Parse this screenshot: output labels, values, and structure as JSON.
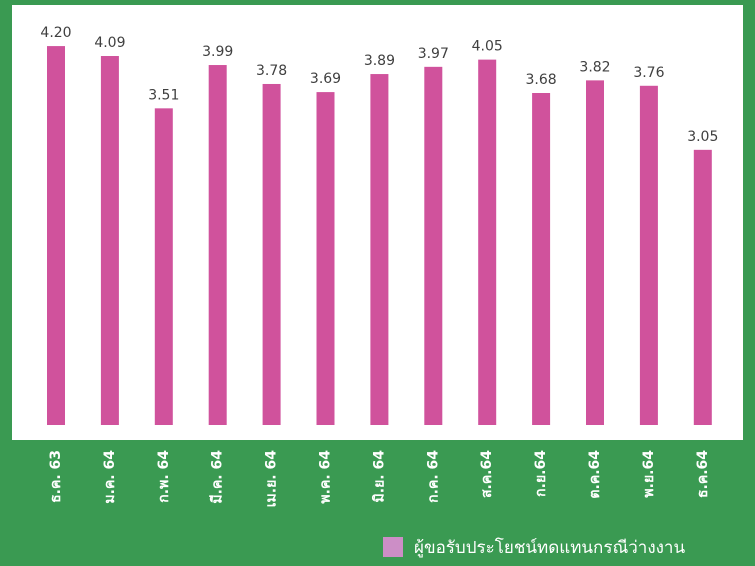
{
  "chart_data": {
    "type": "bar",
    "categories": [
      "ธ.ค. 63",
      "ม.ค. 64",
      "ก.พ. 64",
      "มี.ค. 64",
      "เม.ย. 64",
      "พ.ค. 64",
      "มิ.ย. 64",
      "ก.ค. 64",
      "ส.ค.64",
      "ก.ย.64",
      "ต.ค.64",
      "พ.ย.64",
      "ธ.ค.64"
    ],
    "series": [
      {
        "name": "ผู้ขอรับประโยชน์ทดแทนกรณีว่างงาน",
        "color": "#d0529c",
        "values": [
          4.2,
          4.09,
          3.51,
          3.99,
          3.78,
          3.69,
          3.89,
          3.97,
          4.05,
          3.68,
          3.82,
          3.76,
          3.05
        ],
        "value_labels": [
          "4.20",
          "4.09",
          "3.51",
          "3.99",
          "3.78",
          "3.69",
          "3.89",
          "3.97",
          "4.05",
          "3.68",
          "3.82",
          "3.76",
          "3.05"
        ]
      }
    ],
    "legend_color": "#cc8ec6",
    "ylim": [
      0,
      4.6
    ]
  }
}
